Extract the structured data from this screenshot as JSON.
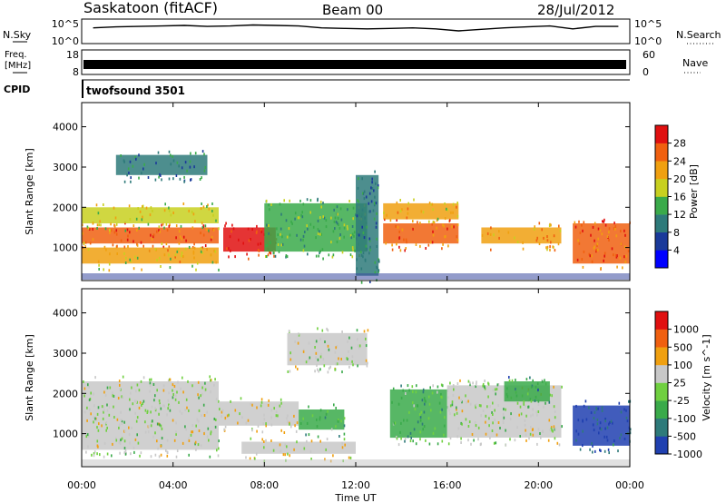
{
  "header": {
    "title": "Saskatoon (fitACF)",
    "beam": "Beam 00",
    "date": "28/Jul/2012"
  },
  "noise_panel": {
    "left_label": "N.Sky",
    "right_label": "N.Search",
    "left_ticks": [
      "10^5",
      "10^0"
    ],
    "right_ticks": [
      "10^5",
      "10^0"
    ]
  },
  "freq_panel": {
    "left_label_1": "Freq.",
    "left_label_2": "[MHz]",
    "left_ticks": [
      "18",
      "8"
    ],
    "right_label": "Nave",
    "right_ticks": [
      "60",
      "0"
    ]
  },
  "cpid_panel": {
    "label": "CPID",
    "program": "twofsound 3501"
  },
  "time_axis": {
    "label": "Time UT",
    "ticks": [
      "00:00",
      "04:00",
      "08:00",
      "12:00",
      "16:00",
      "20:00",
      "00:00"
    ]
  },
  "power_panel": {
    "ylabel": "Slant Range [km]",
    "yticks": [
      "4000",
      "3000",
      "2000",
      "1000"
    ],
    "colorbar_label": "Power [dB]",
    "colorbar_ticks": [
      "28",
      "24",
      "20",
      "16",
      "12",
      "8",
      "4"
    ],
    "colors": [
      "#0000ff",
      "#1a3a9a",
      "#2e7a7a",
      "#3aaa4a",
      "#c8d020",
      "#f0a010",
      "#f06010",
      "#e01010"
    ]
  },
  "velocity_panel": {
    "ylabel": "Slant Range [km]",
    "yticks": [
      "4000",
      "3000",
      "2000",
      "1000"
    ],
    "colorbar_label": "Velocity [m s^-1]",
    "colorbar_ticks": [
      "1000",
      "500",
      "100",
      "25",
      "-25",
      "-100",
      "-500",
      "-1000"
    ],
    "colors": [
      "#2040b0",
      "#2e7a7a",
      "#3aaa4a",
      "#70d040",
      "#c8c8c8",
      "#f0a010",
      "#f06010",
      "#e01010"
    ]
  },
  "chart_data": {
    "type": "heatmap",
    "title": "Saskatoon (fitACF)",
    "subtitle": "Beam 00",
    "date": "28/Jul/2012",
    "xlabel": "Time UT",
    "xlim": [
      0,
      24
    ],
    "ylabel": "Slant Range [km]",
    "ylim": [
      180,
      4600
    ],
    "panels": [
      {
        "name": "Power [dB]",
        "zlim": [
          0,
          32
        ],
        "regions": [
          {
            "t0": 0.0,
            "t1": 6.0,
            "r0": 1100,
            "r1": 1500,
            "value": 26
          },
          {
            "t0": 0.0,
            "t1": 6.0,
            "r0": 1600,
            "r1": 2000,
            "value": 18
          },
          {
            "t0": 0.0,
            "t1": 6.0,
            "r0": 600,
            "r1": 1000,
            "value": 20
          },
          {
            "t0": 6.2,
            "t1": 8.5,
            "r0": 900,
            "r1": 1500,
            "value": 30
          },
          {
            "t0": 8.0,
            "t1": 12.5,
            "r0": 900,
            "r1": 2100,
            "value": 14
          },
          {
            "t0": 12.0,
            "t1": 13.0,
            "r0": 300,
            "r1": 2800,
            "value": 10
          },
          {
            "t0": 13.2,
            "t1": 16.5,
            "r0": 1100,
            "r1": 1600,
            "value": 26
          },
          {
            "t0": 13.2,
            "t1": 16.5,
            "r0": 1700,
            "r1": 2100,
            "value": 20
          },
          {
            "t0": 17.5,
            "t1": 21.0,
            "r0": 1100,
            "r1": 1500,
            "value": 22
          },
          {
            "t0": 21.5,
            "t1": 24.0,
            "r0": 600,
            "r1": 1600,
            "value": 26
          },
          {
            "t0": 1.5,
            "t1": 5.5,
            "r0": 2800,
            "r1": 3300,
            "value": 10
          }
        ]
      },
      {
        "name": "Velocity [m s^-1]",
        "zlim": [
          -1000,
          1000
        ],
        "regions": [
          {
            "t0": 0.0,
            "t1": 6.0,
            "r0": 600,
            "r1": 2300,
            "value": 0
          },
          {
            "t0": 6.0,
            "t1": 9.5,
            "r0": 1200,
            "r1": 1800,
            "value": 150
          },
          {
            "t0": 7.0,
            "t1": 12.0,
            "r0": 500,
            "r1": 800,
            "value": 100
          },
          {
            "t0": 9.5,
            "t1": 11.5,
            "r0": 1100,
            "r1": 1600,
            "value": -300
          },
          {
            "t0": 13.5,
            "t1": 16.0,
            "r0": 900,
            "r1": 2100,
            "value": -300
          },
          {
            "t0": 16.0,
            "t1": 21.0,
            "r0": 900,
            "r1": 2200,
            "value": 0
          },
          {
            "t0": 18.5,
            "t1": 20.5,
            "r0": 1800,
            "r1": 2300,
            "value": -500
          },
          {
            "t0": 21.5,
            "t1": 24.0,
            "r0": 700,
            "r1": 1700,
            "value": -800
          },
          {
            "t0": 9.0,
            "t1": 12.5,
            "r0": 2700,
            "r1": 3500,
            "value": 0
          }
        ]
      }
    ],
    "noise_level": [
      3.2,
      3.4,
      3.5,
      3.6,
      3.7,
      3.5,
      3.6,
      3.8,
      3.7,
      3.6,
      3.2,
      3.1,
      3.0,
      3.1,
      3.2,
      3.0,
      2.6,
      2.9,
      3.2,
      3.4,
      3.6,
      3.0,
      3.5,
      3.5
    ]
  }
}
